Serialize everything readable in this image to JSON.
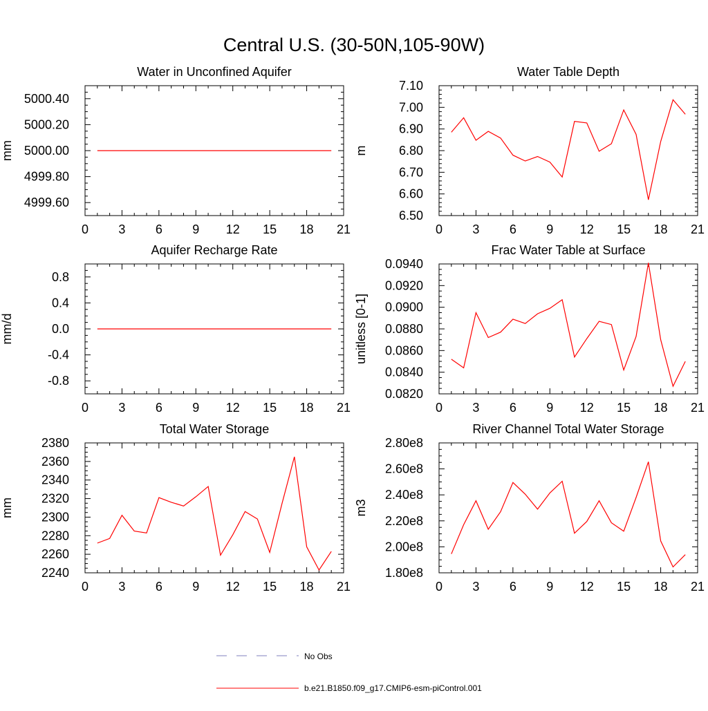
{
  "figure_title": "Central U.S. (30-50N,105-90W)",
  "legend": {
    "entries": [
      {
        "label": "No Obs",
        "color": "#7f7fbf",
        "style": "dashed"
      },
      {
        "label": "b.e21.B1850.f09_g17.CMIP6-esm-piControl.001",
        "color": "#ff0000",
        "style": "solid"
      }
    ]
  },
  "chart_data": [
    {
      "type": "line",
      "title": "Water in Unconfined Aquifer",
      "ylabel": "mm",
      "xlim": [
        0,
        21
      ],
      "ylim": [
        4999.5,
        5000.5
      ],
      "xticks": [
        0,
        3,
        6,
        9,
        12,
        15,
        18,
        21
      ],
      "yticks": [
        4999.6,
        4999.8,
        5000.0,
        5000.2,
        5000.4
      ],
      "ytick_labels": [
        "4999.60",
        "4999.80",
        "5000.00",
        "5000.20",
        "5000.40"
      ],
      "ytick_minor_step": 0.05,
      "series": [
        {
          "color": "#ff0000",
          "x": [
            1,
            2,
            3,
            4,
            5,
            6,
            7,
            8,
            9,
            10,
            11,
            12,
            13,
            14,
            15,
            16,
            17,
            18,
            19,
            20
          ],
          "values": [
            5000,
            5000,
            5000,
            5000,
            5000,
            5000,
            5000,
            5000,
            5000,
            5000,
            5000,
            5000,
            5000,
            5000,
            5000,
            5000,
            5000,
            5000,
            5000,
            5000
          ]
        }
      ]
    },
    {
      "type": "line",
      "title": "Water Table Depth",
      "ylabel": "m",
      "xlim": [
        0,
        21
      ],
      "ylim": [
        6.5,
        7.1
      ],
      "xticks": [
        0,
        3,
        6,
        9,
        12,
        15,
        18,
        21
      ],
      "yticks": [
        6.5,
        6.6,
        6.7,
        6.8,
        6.9,
        7.0,
        7.1
      ],
      "ytick_labels": [
        "6.50",
        "6.60",
        "6.70",
        "6.80",
        "6.90",
        "7.00",
        "7.10"
      ],
      "ytick_minor_step": 0.02,
      "series": [
        {
          "color": "#ff0000",
          "x": [
            1,
            2,
            3,
            4,
            5,
            6,
            7,
            8,
            9,
            10,
            11,
            12,
            13,
            14,
            15,
            16,
            17,
            18,
            19,
            20
          ],
          "values": [
            6.885,
            6.952,
            6.848,
            6.889,
            6.858,
            6.779,
            6.752,
            6.773,
            6.747,
            6.678,
            6.935,
            6.928,
            6.797,
            6.832,
            6.988,
            6.875,
            6.573,
            6.842,
            7.035,
            6.968
          ]
        }
      ]
    },
    {
      "type": "line",
      "title": "Aquifer Recharge Rate",
      "ylabel": "mm/d",
      "xlim": [
        0,
        21
      ],
      "ylim": [
        -1.0,
        1.0
      ],
      "xticks": [
        0,
        3,
        6,
        9,
        12,
        15,
        18,
        21
      ],
      "yticks": [
        -0.8,
        -0.4,
        0.0,
        0.4,
        0.8
      ],
      "ytick_labels": [
        "-0.8",
        "-0.4",
        "0.0",
        "0.4",
        "0.8"
      ],
      "ytick_minor_step": 0.1,
      "series": [
        {
          "color": "#ff0000",
          "x": [
            1,
            2,
            3,
            4,
            5,
            6,
            7,
            8,
            9,
            10,
            11,
            12,
            13,
            14,
            15,
            16,
            17,
            18,
            19,
            20
          ],
          "values": [
            0,
            0,
            0,
            0,
            0,
            0,
            0,
            0,
            0,
            0,
            0,
            0,
            0,
            0,
            0,
            0,
            0,
            0,
            0,
            0
          ]
        }
      ]
    },
    {
      "type": "line",
      "title": "Frac Water Table at Surface",
      "ylabel": "unitless [0-1]",
      "xlim": [
        0,
        21
      ],
      "ylim": [
        0.082,
        0.094
      ],
      "xticks": [
        0,
        3,
        6,
        9,
        12,
        15,
        18,
        21
      ],
      "yticks": [
        0.082,
        0.084,
        0.086,
        0.088,
        0.09,
        0.092,
        0.094
      ],
      "ytick_labels": [
        "0.0820",
        "0.0840",
        "0.0860",
        "0.0880",
        "0.0900",
        "0.0920",
        "0.0940"
      ],
      "ytick_minor_step": 0.0005,
      "series": [
        {
          "color": "#ff0000",
          "x": [
            1,
            2,
            3,
            4,
            5,
            6,
            7,
            8,
            9,
            10,
            11,
            12,
            13,
            14,
            15,
            16,
            17,
            18,
            19,
            20
          ],
          "values": [
            0.0852,
            0.0844,
            0.0895,
            0.0872,
            0.0877,
            0.0889,
            0.0885,
            0.0894,
            0.0899,
            0.0907,
            0.0854,
            0.0871,
            0.0887,
            0.0884,
            0.0842,
            0.0873,
            0.0941,
            0.087,
            0.0827,
            0.085
          ]
        }
      ]
    },
    {
      "type": "line",
      "title": "Total Water Storage",
      "ylabel": "mm",
      "xlim": [
        0,
        21
      ],
      "ylim": [
        2240,
        2380
      ],
      "xticks": [
        0,
        3,
        6,
        9,
        12,
        15,
        18,
        21
      ],
      "yticks": [
        2240,
        2260,
        2280,
        2300,
        2320,
        2340,
        2360,
        2380
      ],
      "ytick_labels": [
        "2240",
        "2260",
        "2280",
        "2300",
        "2320",
        "2340",
        "2360",
        "2380"
      ],
      "ytick_minor_step": 5,
      "series": [
        {
          "color": "#ff0000",
          "x": [
            1,
            2,
            3,
            4,
            5,
            6,
            7,
            8,
            9,
            10,
            11,
            12,
            13,
            14,
            15,
            16,
            17,
            18,
            19,
            20
          ],
          "values": [
            2272,
            2277,
            2302,
            2285,
            2283,
            2321,
            2316,
            2312,
            2322,
            2333,
            2259,
            2281,
            2306,
            2298,
            2262,
            2315,
            2365,
            2268,
            2243,
            2263
          ]
        }
      ]
    },
    {
      "type": "line",
      "title": "River Channel Total Water Storage",
      "ylabel": "m3",
      "xlim": [
        0,
        21
      ],
      "ylim": [
        180000000,
        280000000
      ],
      "xticks": [
        0,
        3,
        6,
        9,
        12,
        15,
        18,
        21
      ],
      "yticks": [
        180000000,
        200000000,
        220000000,
        240000000,
        260000000,
        280000000
      ],
      "ytick_labels": [
        "1.80e8",
        "2.00e8",
        "2.20e8",
        "2.40e8",
        "2.60e8",
        "2.80e8"
      ],
      "ytick_minor_step": 5000000,
      "series": [
        {
          "color": "#ff0000",
          "x": [
            1,
            2,
            3,
            4,
            5,
            6,
            7,
            8,
            9,
            10,
            11,
            12,
            13,
            14,
            15,
            16,
            17,
            18,
            19,
            20
          ],
          "values": [
            194500000,
            217000000,
            235500000,
            213500000,
            227000000,
            249500000,
            240500000,
            229000000,
            241500000,
            250500000,
            210500000,
            219500000,
            235500000,
            218500000,
            212000000,
            238000000,
            265500000,
            204500000,
            184500000,
            194000000
          ]
        }
      ]
    }
  ]
}
